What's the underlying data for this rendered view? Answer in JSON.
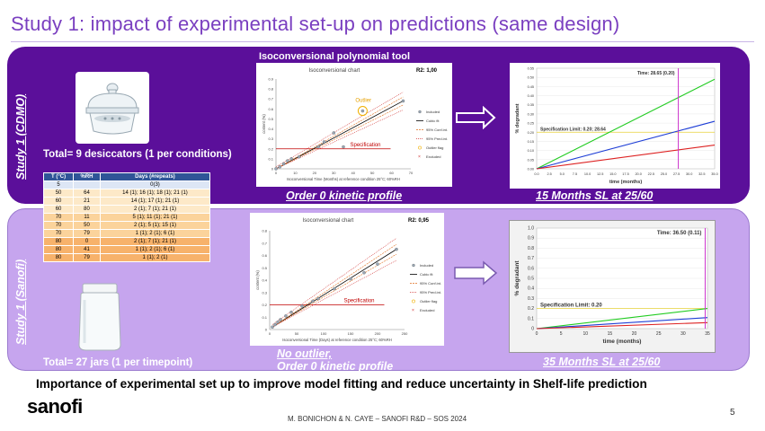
{
  "slide": {
    "title": "Study 1: impact of experimental set-up on predictions (same design)",
    "page_number": "5",
    "footer": "M. BONICHON & N. CAYE – SANOFI R&D – SOS 2024",
    "bottom_message": "Importance of experimental set up to improve model fitting and reduce uncertainty in Shelf-life prediction",
    "logo_text": "sanofi"
  },
  "top": {
    "side_label": "Study 1 (CDMO)",
    "tool_label": "Isoconversional polynomial tool",
    "caption": "Total= 9 desiccators (1 per conditions)",
    "model_label": "Order 0 kinetic profile",
    "sl_label": "15 Months SL at 25/60",
    "colors": {
      "panel": "#5b0f9a"
    }
  },
  "bottom": {
    "side_label": "Study 1 (Sanofi)",
    "caption": "Total= 27 jars (1 per timepoint)",
    "model_line1": "No outlier,",
    "model_line2": "Order 0 kinetic profile",
    "sl_label": "35 Months SL at 25/60",
    "colors": {
      "panel": "#c6a5ee"
    }
  },
  "conditions_table": {
    "headers": [
      "T (°C)",
      "%RH",
      "Days (#repeats)"
    ],
    "rows": [
      [
        "5",
        "",
        "0(3)"
      ],
      [
        "50",
        "64",
        "14 (1); 16 (1); 18 (1); 21 (1)"
      ],
      [
        "60",
        "21",
        "14 (1); 17 (1); 21 (1)"
      ],
      [
        "60",
        "80",
        "2 (1); 7 (1); 21 (1)"
      ],
      [
        "70",
        "11",
        "5 (1); 11 (1); 21 (1)"
      ],
      [
        "70",
        "50",
        "2 (1); 5 (1); 15 (1)"
      ],
      [
        "70",
        "79",
        "1 (1); 2 (1); 6 (1)"
      ],
      [
        "80",
        "0",
        "2 (1); 7 (1); 21 (1)"
      ],
      [
        "80",
        "41",
        "1 (1); 2 (1); 6 (1)"
      ],
      [
        "80",
        "79",
        "1 (1); 2 (1)"
      ]
    ],
    "row_colors": [
      "#dde6f5",
      "#fde9c8",
      "#fde9c8",
      "#fde9c8",
      "#fbd39b",
      "#fbd39b",
      "#fbd39b",
      "#f7b26b",
      "#f7b26b",
      "#f7b26b"
    ]
  },
  "chart_data": [
    {
      "type": "scatter",
      "title": "Isoconversional chart",
      "r2": "R2: 1,00",
      "xlabel": "Isoconversional Time (Months) at reference condition 25°C; 60%RH",
      "ylabel": "content (%)",
      "xlim": [
        0,
        70
      ],
      "ylim": [
        0,
        0.9
      ],
      "xticks": [
        "0",
        "10",
        "20",
        "30",
        "40",
        "50",
        "60",
        "70"
      ],
      "yticks": [
        "0",
        "0.1",
        "0.2",
        "0.3",
        "0.4",
        "0.5",
        "0.6",
        "0.7",
        "0.8",
        "0.9"
      ],
      "points": [
        [
          0,
          0
        ],
        [
          2,
          0.02
        ],
        [
          4,
          0.05
        ],
        [
          6,
          0.08
        ],
        [
          8,
          0.1
        ],
        [
          12,
          0.12
        ],
        [
          22,
          0.22
        ],
        [
          25,
          0.27
        ],
        [
          30,
          0.36
        ],
        [
          35,
          0.22
        ],
        [
          45,
          0.58
        ],
        [
          66,
          0.68
        ]
      ],
      "outlier": [
        45,
        0.58
      ],
      "spec_limit": 0.2,
      "annotations": [
        "Outlier",
        "Specification"
      ],
      "legend": [
        "Included",
        "Cubic fit",
        "95% Conf.int.",
        "95% Pred.int.",
        "Outlier flag",
        "Excluded"
      ]
    },
    {
      "type": "line",
      "title": "",
      "annotation": "Time: 28.65 (0.20)",
      "spec_text": "Specification Limit: 0.20; 28.64",
      "xlabel": "time (months)",
      "ylabel": "% degradant",
      "xlim": [
        0,
        36
      ],
      "ylim": [
        0,
        0.55
      ],
      "xticks": [
        "0.0",
        "2.5",
        "5.0",
        "7.5",
        "10.0",
        "12.5",
        "15.0",
        "17.5",
        "20.0",
        "22.5",
        "25.0",
        "27.5",
        "30.0",
        "32.5",
        "35.0"
      ],
      "yticks": [
        "0.00",
        "0.05",
        "0.10",
        "0.15",
        "0.20",
        "0.25",
        "0.30",
        "0.35",
        "0.40",
        "0.45",
        "0.50",
        "0.55"
      ],
      "series": [
        {
          "color": "#22cc22",
          "values": [
            [
              0,
              0
            ],
            [
              36,
              0.49
            ]
          ]
        },
        {
          "color": "#1f3fd6",
          "values": [
            [
              0,
              0
            ],
            [
              36,
              0.26
            ]
          ]
        },
        {
          "color": "#dd2222",
          "values": [
            [
              0,
              0
            ],
            [
              36,
              0.13
            ]
          ]
        }
      ],
      "spec_limit": 0.2,
      "vline": 28.65
    },
    {
      "type": "scatter",
      "title": "Isoconversional chart",
      "r2": "R2: 0,95",
      "xlabel": "Isoconversional Time (Days) at reference condition 25°C; 60%RH",
      "ylabel": "content (%)",
      "xlim": [
        0,
        250
      ],
      "ylim": [
        0,
        0.8
      ],
      "xticks": [
        "0",
        "50",
        "100",
        "150",
        "200",
        "250"
      ],
      "yticks": [
        "0",
        "0.1",
        "0.2",
        "0.3",
        "0.4",
        "0.5",
        "0.6",
        "0.7",
        "0.8"
      ],
      "points": [
        [
          5,
          0.02
        ],
        [
          10,
          0.04
        ],
        [
          15,
          0.06
        ],
        [
          20,
          0.08
        ],
        [
          30,
          0.11
        ],
        [
          40,
          0.14
        ],
        [
          60,
          0.19
        ],
        [
          80,
          0.23
        ],
        [
          90,
          0.25
        ],
        [
          120,
          0.33
        ],
        [
          150,
          0.41
        ],
        [
          175,
          0.46
        ],
        [
          200,
          0.53
        ],
        [
          235,
          0.65
        ]
      ],
      "spec_limit": 0.2,
      "annotations": [
        "Specification"
      ],
      "legend": [
        "Included",
        "Cubic fit",
        "95% Conf.int.",
        "95% Pred.int.",
        "Outlier flag",
        "Excluded"
      ]
    },
    {
      "type": "line",
      "title": "",
      "annotation": "Time: 36.50 (0.11)",
      "spec_text": "Specification Limit: 0.20",
      "xlabel": "time (months)",
      "ylabel": "% degradant",
      "xlim": [
        0,
        37
      ],
      "ylim": [
        0,
        1.0
      ],
      "xticks": [
        "0",
        "5",
        "10",
        "15",
        "20",
        "25",
        "30",
        "35"
      ],
      "yticks": [
        "0",
        "0.1",
        "0.2",
        "0.3",
        "0.4",
        "0.5",
        "0.6",
        "0.7",
        "0.8",
        "0.9",
        "1.0"
      ],
      "series": [
        {
          "color": "#22cc22",
          "values": [
            [
              0,
              0
            ],
            [
              37,
              0.2
            ]
          ]
        },
        {
          "color": "#1f3fd6",
          "values": [
            [
              0,
              0
            ],
            [
              37,
              0.11
            ]
          ]
        },
        {
          "color": "#dd2222",
          "values": [
            [
              0,
              0
            ],
            [
              37,
              0.06
            ]
          ]
        }
      ],
      "spec_limit": 0.2,
      "vline": 36.5
    }
  ]
}
